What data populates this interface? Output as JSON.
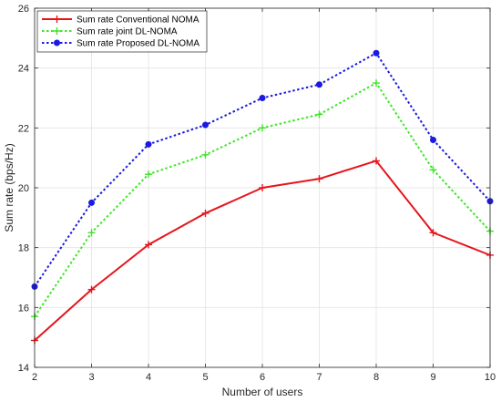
{
  "chart_data": {
    "type": "line",
    "title": "",
    "xlabel": "Number of users",
    "ylabel": "Sum rate (bps/Hz)",
    "xlim": [
      2,
      10
    ],
    "ylim": [
      14,
      26
    ],
    "xticks": [
      2,
      3,
      4,
      5,
      6,
      7,
      8,
      9,
      10
    ],
    "yticks": [
      14,
      16,
      18,
      20,
      22,
      24,
      26
    ],
    "grid": true,
    "legend_position": "top-left",
    "x": [
      2,
      3,
      4,
      5,
      6,
      7,
      8,
      9,
      10
    ],
    "series": [
      {
        "name": "Sum rate Conventional NOMA",
        "values": [
          14.9,
          16.6,
          18.1,
          19.15,
          20.0,
          20.3,
          20.9,
          18.5,
          17.75
        ],
        "color": "#e8141b",
        "line_style": "solid",
        "marker": "plus"
      },
      {
        "name": "Sum rate joint DL-NOMA",
        "values": [
          15.7,
          18.5,
          20.45,
          21.1,
          22.0,
          22.45,
          23.5,
          20.6,
          18.55
        ],
        "color": "#3de626",
        "line_style": "dotted",
        "marker": "plus"
      },
      {
        "name": "Sum rate Proposed DL-NOMA",
        "values": [
          16.7,
          19.5,
          21.45,
          22.1,
          23.0,
          23.45,
          24.5,
          21.6,
          19.55
        ],
        "color": "#1a1ae0",
        "line_style": "dotted",
        "marker": "dot"
      }
    ]
  }
}
